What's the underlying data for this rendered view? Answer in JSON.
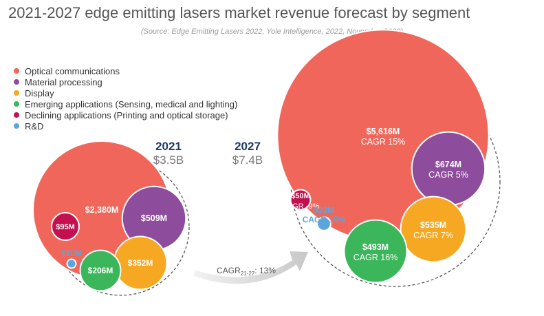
{
  "title": "2021-2027 edge emitting lasers market revenue forecast by segment",
  "subtitle": "(Source: Edge Emitting Lasers 2022, Yole Intelligence, 2022, November 2022)",
  "legend": [
    {
      "label": "Optical communications",
      "color": "#f0665a"
    },
    {
      "label": "Material processing",
      "color": "#8e4c9c"
    },
    {
      "label": "Display",
      "color": "#f7a823"
    },
    {
      "label": "Emerging applications (Sensing, medical and lighting)",
      "color": "#3cb65b"
    },
    {
      "label": "Declining applications (Printing and optical storage)",
      "color": "#c4104e"
    },
    {
      "label": "R&D",
      "color": "#5aa6dc"
    }
  ],
  "chart_data": {
    "type": "bubble",
    "unit": "$M",
    "cagr_label": "CAGR",
    "cagr_overall": {
      "prefix": "CAGR",
      "sub": "21-27",
      "suffix": ": 13%"
    },
    "years": [
      {
        "year": "2021",
        "total": "$3.5B",
        "segments": [
          {
            "segment": "Optical communications",
            "value": 2380,
            "label": "$2,380M"
          },
          {
            "segment": "Material processing",
            "value": 509,
            "label": "$509M"
          },
          {
            "segment": "Display",
            "value": 352,
            "label": "$352M"
          },
          {
            "segment": "Emerging applications (Sensing, medical and lighting)",
            "value": 206,
            "label": "$206M"
          },
          {
            "segment": "Declining applications (Printing and optical storage)",
            "value": 95,
            "label": "$95M"
          },
          {
            "segment": "R&D",
            "value": 10,
            "label": "$10M"
          }
        ]
      },
      {
        "year": "2027",
        "total": "$7.4B",
        "segments": [
          {
            "segment": "Optical communications",
            "value": 5616,
            "label": "$5,616M",
            "cagr": "CAGR 15%"
          },
          {
            "segment": "Material processing",
            "value": 674,
            "label": "$674M",
            "cagr": "CAGR 5%"
          },
          {
            "segment": "Display",
            "value": 535,
            "label": "$535M",
            "cagr": "CAGR 7%"
          },
          {
            "segment": "Emerging applications (Sensing, medical and lighting)",
            "value": 493,
            "label": "$493M",
            "cagr": "CAGR 16%"
          },
          {
            "segment": "Declining applications (Printing and optical storage)",
            "value": 50,
            "label": "$50M",
            "cagr": "CAGR -9%"
          },
          {
            "segment": "R&D",
            "value": 23,
            "label": "$23M",
            "cagr": "CAGR 15%"
          }
        ]
      }
    ]
  }
}
